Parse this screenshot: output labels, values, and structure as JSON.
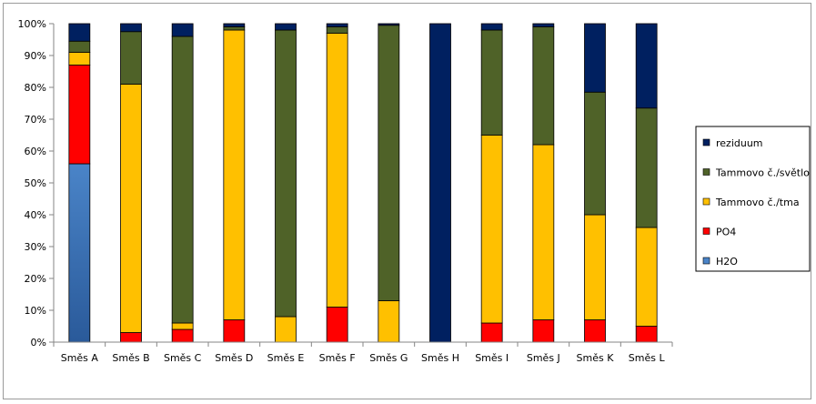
{
  "chart_data": {
    "type": "bar",
    "stacked": true,
    "percent": true,
    "categories": [
      "Směs A",
      "Směs B",
      "Směs C",
      "Směs D",
      "Směs E",
      "Směs F",
      "Směs G",
      "Směs H",
      "Směs I",
      "Směs J",
      "Směs K",
      "Směs L"
    ],
    "series": [
      {
        "name": "H2O",
        "color": "#3c6fb8",
        "values": [
          56,
          0,
          0,
          0,
          0,
          0,
          0,
          0,
          0,
          0,
          0,
          0
        ]
      },
      {
        "name": "PO4",
        "color": "#ff0000",
        "values": [
          31,
          3,
          4,
          7,
          0,
          11,
          0,
          0,
          6,
          7,
          7,
          5
        ]
      },
      {
        "name": "Tammovo č./tma",
        "color": "#ffc000",
        "values": [
          4,
          78,
          2,
          91,
          8,
          86,
          13,
          0,
          59,
          55,
          33,
          31
        ]
      },
      {
        "name": "Tammovo č./světlo",
        "color": "#4f6228",
        "values": [
          3.5,
          16.5,
          90,
          1,
          90,
          2,
          86.5,
          0,
          33,
          37,
          38.5,
          37.5
        ]
      },
      {
        "name": "reziduum",
        "color": "#002060",
        "values": [
          5.5,
          2.5,
          4,
          1,
          2,
          1,
          0.5,
          100,
          2,
          1,
          21.5,
          26.5
        ]
      }
    ],
    "y_ticks": [
      "0%",
      "10%",
      "20%",
      "30%",
      "40%",
      "50%",
      "60%",
      "70%",
      "80%",
      "90%",
      "100%"
    ],
    "ylim": [
      0,
      100
    ],
    "grid": false,
    "legend_position": "right",
    "legend_order": [
      "reziduum",
      "Tammovo č./světlo",
      "Tammovo č./tma",
      "PO4",
      "H2O"
    ]
  }
}
